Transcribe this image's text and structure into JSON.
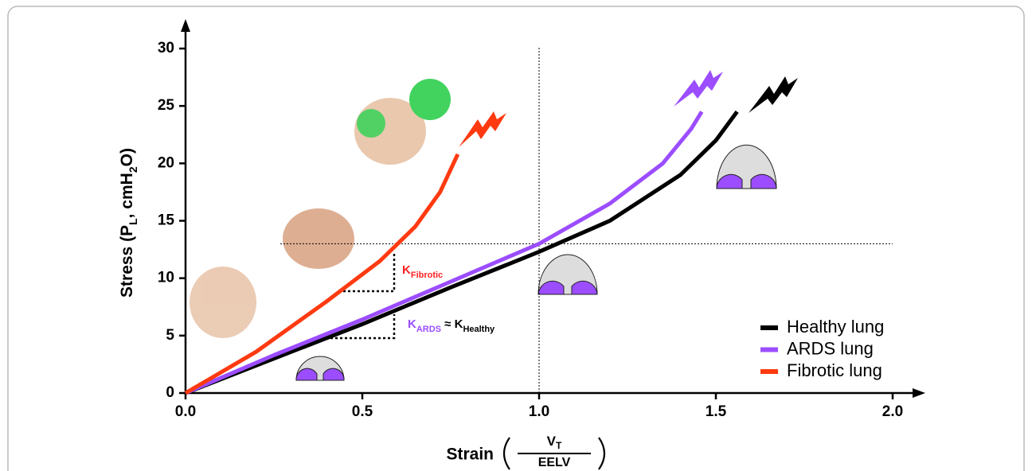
{
  "chart_data": {
    "type": "line",
    "y_label": [
      {
        "text": "Stress (P"
      },
      {
        "text": "L",
        "sub": true
      },
      {
        "text": ", cmH"
      },
      {
        "text": "2",
        "sub": true
      },
      {
        "text": "O)"
      }
    ],
    "x_label": {
      "text": "Strain",
      "numerator": [
        "V",
        "T"
      ],
      "denominator": "EELV"
    },
    "xlim": [
      0,
      2
    ],
    "ylim": [
      0,
      30
    ],
    "xticks": [
      {
        "value": 0,
        "label": "0.0"
      },
      0.5,
      {
        "value": 1,
        "label": "1.0"
      },
      1.5,
      {
        "value": 2,
        "label": "2.0"
      }
    ],
    "yticks": [
      0,
      5,
      10,
      15,
      20,
      25,
      30
    ],
    "reference_lines": {
      "x": 1.0,
      "y": 13
    },
    "series": [
      {
        "name": "Healthy lung",
        "color": "#000000",
        "x": [
          0,
          0.25,
          0.5,
          0.75,
          1.0,
          1.2,
          1.4,
          1.5,
          1.56
        ],
        "values": [
          0,
          3,
          6,
          9.2,
          12.3,
          15,
          19,
          22,
          24.5
        ]
      },
      {
        "name": "ARDS lung",
        "color": "#9b4dff",
        "x": [
          0,
          0.25,
          0.5,
          0.75,
          1.0,
          1.2,
          1.35,
          1.43,
          1.46
        ],
        "values": [
          0,
          3.3,
          6.4,
          9.7,
          13,
          16.5,
          20,
          23,
          24.5
        ]
      },
      {
        "name": "Fibrotic lung",
        "color": "#ff3a10",
        "x": [
          0,
          0.2,
          0.4,
          0.55,
          0.65,
          0.72,
          0.77
        ],
        "values": [
          0,
          3.6,
          8,
          11.5,
          14.5,
          17.5,
          20.8
        ]
      }
    ],
    "annotations": [
      {
        "color": "#ff2020",
        "parts": [
          {
            "text": "K"
          },
          {
            "text": "Fibrotic",
            "sub": true
          }
        ]
      },
      {
        "color": "#9b4dff",
        "parts": [
          {
            "text": "K"
          },
          {
            "text": "ARDS",
            "sub": true
          },
          {
            "text": " ≈ ",
            "color": "#000000"
          },
          {
            "text": "K",
            "color": "#000000"
          },
          {
            "text": "Healthy",
            "sub": true,
            "color": "#000000"
          }
        ]
      }
    ],
    "legend": "lower right"
  }
}
